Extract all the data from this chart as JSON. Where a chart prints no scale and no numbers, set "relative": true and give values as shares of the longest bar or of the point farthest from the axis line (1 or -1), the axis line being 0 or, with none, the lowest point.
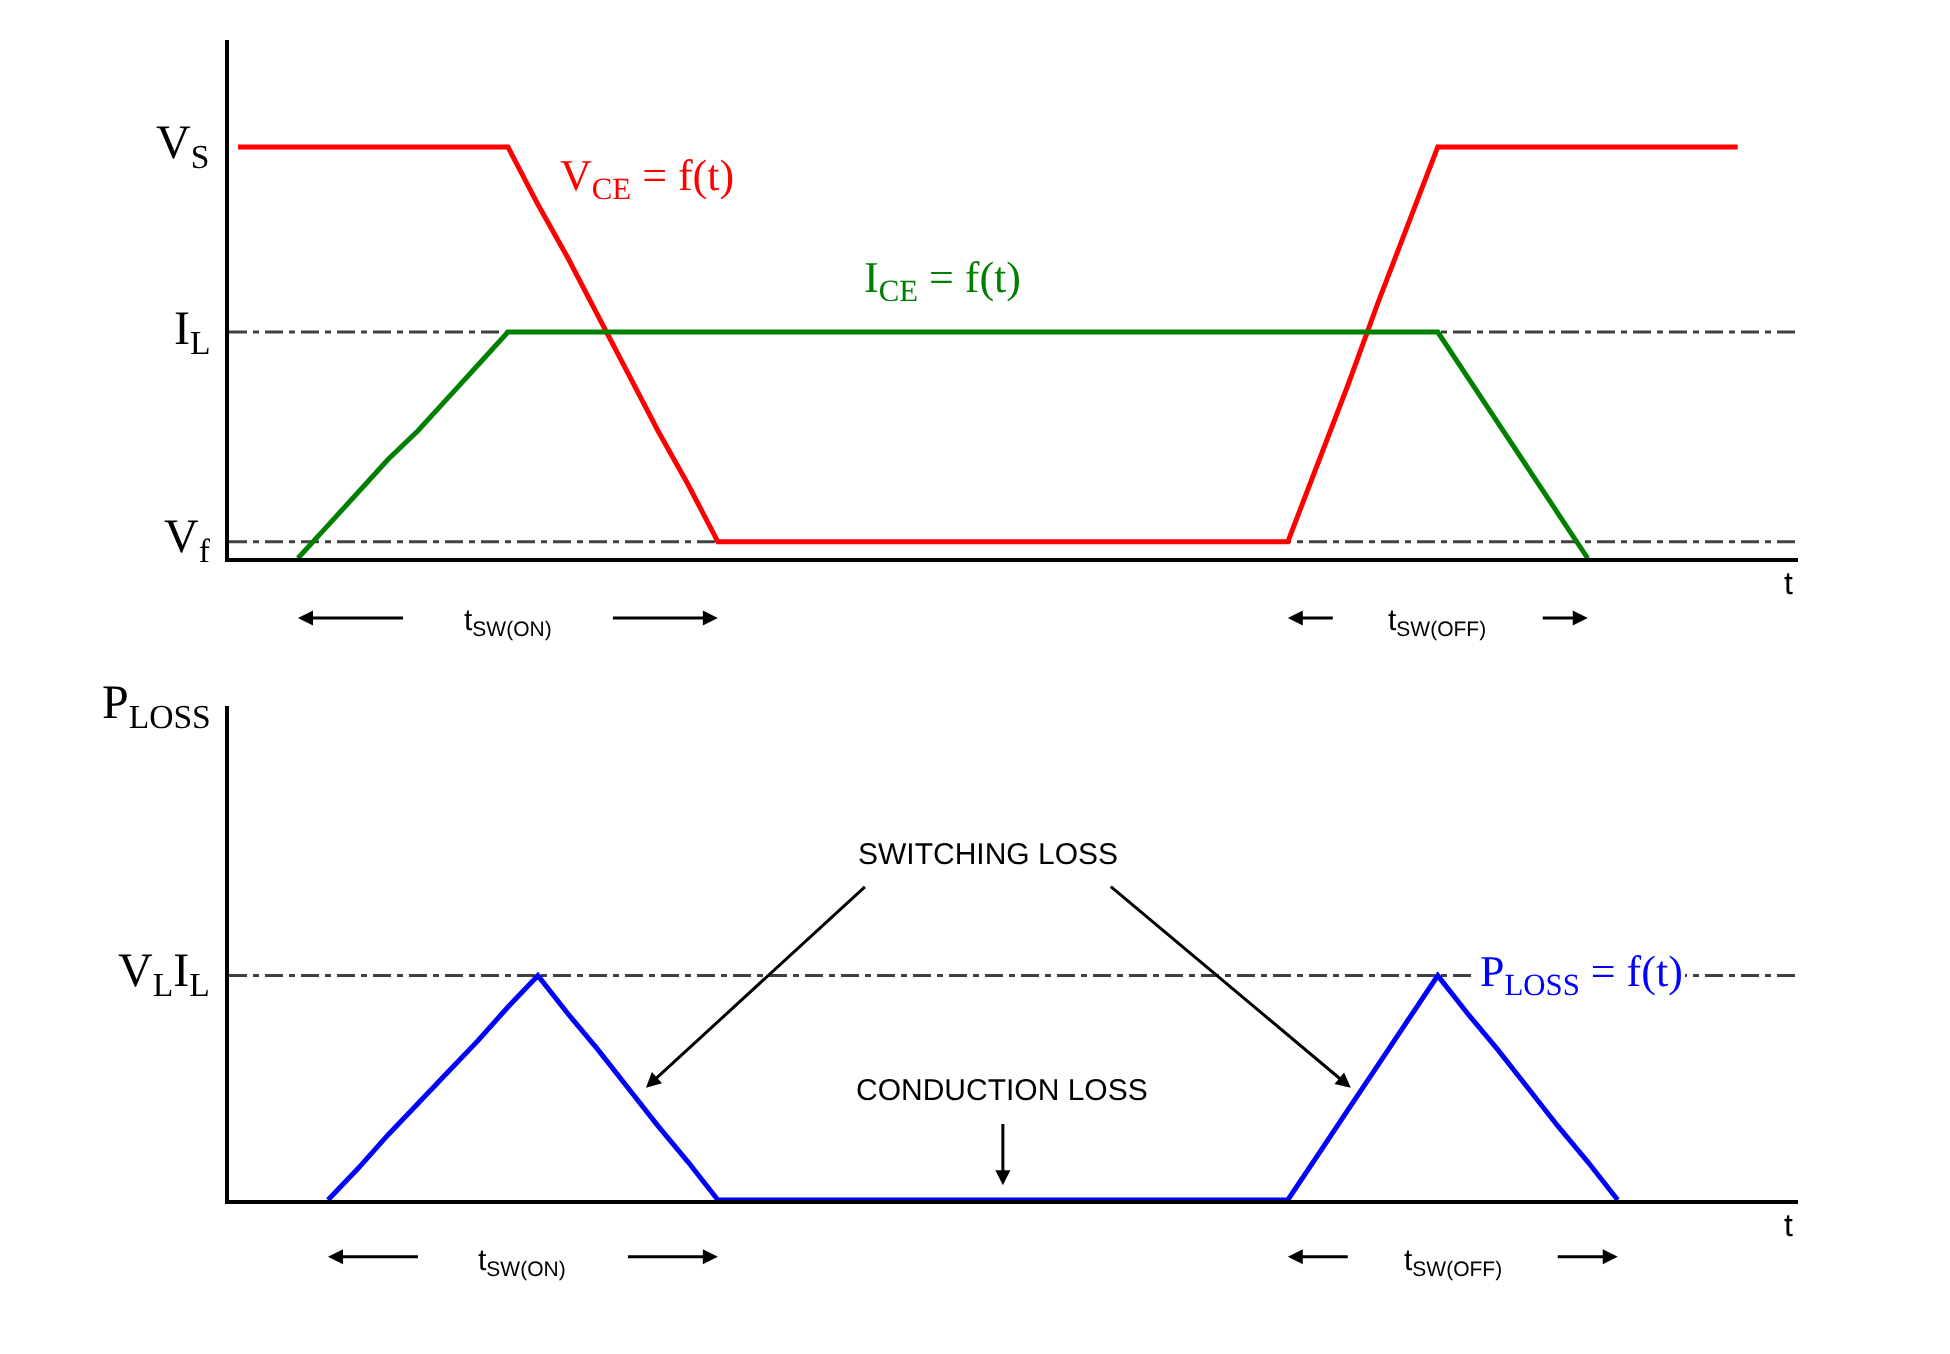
{
  "chart_data": [
    {
      "type": "line",
      "relative": true,
      "xlabel": "t",
      "categories": [
        null,
        null,
        null,
        null,
        null,
        null,
        null,
        null,
        null,
        null,
        null,
        null,
        null,
        null,
        null,
        null,
        null,
        null,
        null,
        null,
        null,
        null,
        null,
        null,
        null,
        null,
        null,
        null,
        null,
        null,
        null,
        null,
        null,
        null,
        null,
        null,
        null,
        null,
        null,
        null,
        null,
        null,
        null,
        null,
        null,
        null,
        null,
        null,
        null,
        null,
        null
      ],
      "legend": false,
      "marker": "none",
      "line_style": "solid",
      "series": [
        {
          "name": "V$_{CE}$ = f(t)",
          "color": "#ff0000",
          "values": [
            1,
            1,
            1,
            1,
            1,
            1,
            1,
            1,
            1,
            1,
            0.86,
            0.73,
            0.59,
            0.45,
            0.31,
            0.18,
            0.04,
            0.04,
            0.04,
            0.04,
            0.04,
            0.04,
            0.04,
            0.04,
            0.04,
            0.04,
            0.04,
            0.04,
            0.04,
            0.04,
            0.04,
            0.04,
            0.04,
            0.04,
            0.04,
            0.04,
            0.23,
            0.42,
            0.62,
            0.81,
            1,
            1,
            1,
            1,
            1,
            1,
            1,
            1,
            1,
            1,
            1
          ]
        },
        {
          "name": "I$_{CE}$ = f(t)",
          "color": "#008000",
          "values": [
            null,
            null,
            0,
            0.08,
            0.16,
            0.24,
            0.31,
            0.39,
            0.47,
            0.55,
            0.55,
            0.55,
            0.55,
            0.55,
            0.55,
            0.55,
            0.55,
            0.55,
            0.55,
            0.55,
            0.55,
            0.55,
            0.55,
            0.55,
            0.55,
            0.55,
            0.55,
            0.55,
            0.55,
            0.55,
            0.55,
            0.55,
            0.55,
            0.55,
            0.55,
            0.55,
            0.55,
            0.55,
            0.55,
            0.55,
            0.55,
            0.44,
            0.33,
            0.22,
            0.11,
            0,
            null,
            null,
            null,
            null,
            null
          ]
        }
      ],
      "ref_lines": [
        {
          "axis": "y",
          "value": 0.55,
          "label": "I$_{L}$",
          "line_style": "dashdot",
          "color": "#404040"
        },
        {
          "axis": "y",
          "value": 0.04,
          "label": "V$_{f}$",
          "line_style": "dashdot",
          "color": "#404040"
        }
      ],
      "annotations": [
        "V$_{S}$",
        "t$_{SW(ON)}$",
        "t$_{SW(OFF)}$"
      ]
    },
    {
      "type": "line",
      "relative": true,
      "xlabel": "t",
      "ylabel": "P$_{LOSS}$",
      "categories": [
        null,
        null,
        null,
        null,
        null,
        null,
        null,
        null,
        null,
        null,
        null,
        null,
        null,
        null,
        null,
        null,
        null,
        null,
        null,
        null,
        null,
        null,
        null,
        null,
        null,
        null,
        null,
        null,
        null,
        null,
        null,
        null,
        null,
        null,
        null,
        null,
        null,
        null,
        null,
        null,
        null,
        null,
        null,
        null,
        null,
        null,
        null,
        null,
        null,
        null,
        null
      ],
      "legend": false,
      "marker": "none",
      "line_style": "solid",
      "series": [
        {
          "name": "P$_{LOSS}$ = f(t)",
          "color": "#0000ff",
          "values": [
            null,
            null,
            null,
            0,
            0.14,
            0.29,
            0.43,
            0.57,
            0.71,
            0.86,
            1,
            0.83,
            0.67,
            0.5,
            0.33,
            0.17,
            0,
            0,
            0,
            0,
            0,
            0,
            0,
            0,
            0,
            0,
            0,
            0,
            0,
            0,
            0,
            0,
            0,
            0,
            0,
            0,
            0.2,
            0.4,
            0.6,
            0.8,
            1,
            0.83,
            0.67,
            0.5,
            0.33,
            0.17,
            0,
            null,
            null,
            null,
            null
          ]
        }
      ],
      "ref_lines": [
        {
          "axis": "y",
          "value": 1,
          "label": "V$_{L}$I$_{L}$",
          "line_style": "dashdot",
          "color": "#404040"
        }
      ],
      "annotations": [
        "SWITCHING LOSS",
        "CONDUCTION LOSS",
        "t$_{SW(ON)}$",
        "t$_{SW(OFF)}$"
      ]
    }
  ]
}
